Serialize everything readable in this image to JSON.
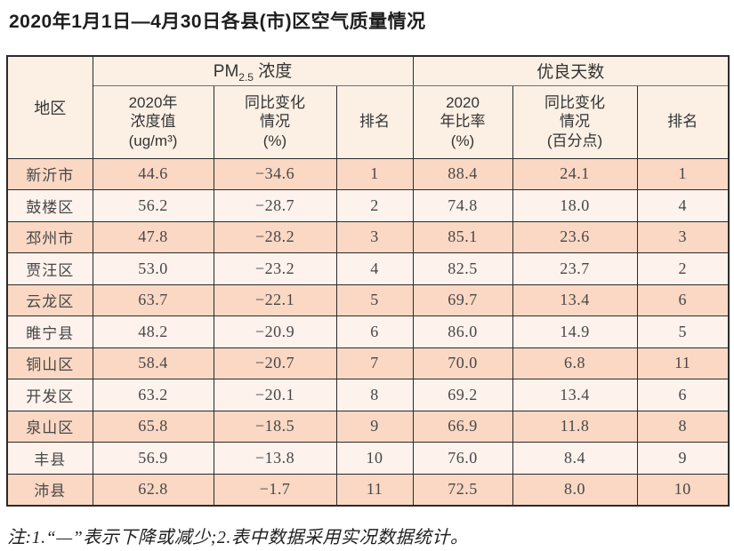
{
  "title": "2020年1月1日—4月30日各县(市)区空气质量情况",
  "table": {
    "region_header": "地区",
    "group_pm": {
      "prefix": "PM",
      "sub": "2.5",
      "suffix": " 浓度"
    },
    "group_good": "优良天数",
    "sub_headers": {
      "pm_value": "2020年\n浓度值\n(ug/m³)",
      "pm_change": "同比变化\n情况\n(%)",
      "pm_rank": "排名",
      "good_ratio": "2020\n年比率\n(%)",
      "good_change": "同比变化\n情况\n(百分点)",
      "good_rank": "排名"
    },
    "rows": [
      {
        "region": "新沂市",
        "pm25_value": "44.6",
        "pm25_change": "−34.6",
        "pm25_rank": "1",
        "good_ratio": "88.4",
        "good_change": "24.1",
        "good_rank": "1"
      },
      {
        "region": "鼓楼区",
        "pm25_value": "56.2",
        "pm25_change": "−28.7",
        "pm25_rank": "2",
        "good_ratio": "74.8",
        "good_change": "18.0",
        "good_rank": "4"
      },
      {
        "region": "邳州市",
        "pm25_value": "47.8",
        "pm25_change": "−28.2",
        "pm25_rank": "3",
        "good_ratio": "85.1",
        "good_change": "23.6",
        "good_rank": "3"
      },
      {
        "region": "贾汪区",
        "pm25_value": "53.0",
        "pm25_change": "−23.2",
        "pm25_rank": "4",
        "good_ratio": "82.5",
        "good_change": "23.7",
        "good_rank": "2"
      },
      {
        "region": "云龙区",
        "pm25_value": "63.7",
        "pm25_change": "−22.1",
        "pm25_rank": "5",
        "good_ratio": "69.7",
        "good_change": "13.4",
        "good_rank": "6"
      },
      {
        "region": "睢宁县",
        "pm25_value": "48.2",
        "pm25_change": "−20.9",
        "pm25_rank": "6",
        "good_ratio": "86.0",
        "good_change": "14.9",
        "good_rank": "5"
      },
      {
        "region": "铜山区",
        "pm25_value": "58.4",
        "pm25_change": "−20.7",
        "pm25_rank": "7",
        "good_ratio": "70.0",
        "good_change": "6.8",
        "good_rank": "11"
      },
      {
        "region": "开发区",
        "pm25_value": "63.2",
        "pm25_change": "−20.1",
        "pm25_rank": "8",
        "good_ratio": "69.2",
        "good_change": "13.4",
        "good_rank": "6"
      },
      {
        "region": "泉山区",
        "pm25_value": "65.8",
        "pm25_change": "−18.5",
        "pm25_rank": "9",
        "good_ratio": "66.9",
        "good_change": "11.8",
        "good_rank": "8"
      },
      {
        "region": "丰县",
        "pm25_value": "56.9",
        "pm25_change": "−13.8",
        "pm25_rank": "10",
        "good_ratio": "76.0",
        "good_change": "8.4",
        "good_rank": "9"
      },
      {
        "region": "沛县",
        "pm25_value": "62.8",
        "pm25_change": "−1.7",
        "pm25_rank": "11",
        "good_ratio": "72.5",
        "good_change": "8.0",
        "good_rank": "10"
      }
    ]
  },
  "footnote": "注:1.“—”表示下降或减少;2.表中数据采用实况数据统计。",
  "colors": {
    "border": "#2b2b2b",
    "header_bg": "#fcf0e5",
    "row_odd": "#fad8c4",
    "row_even": "#fdf2ec"
  }
}
